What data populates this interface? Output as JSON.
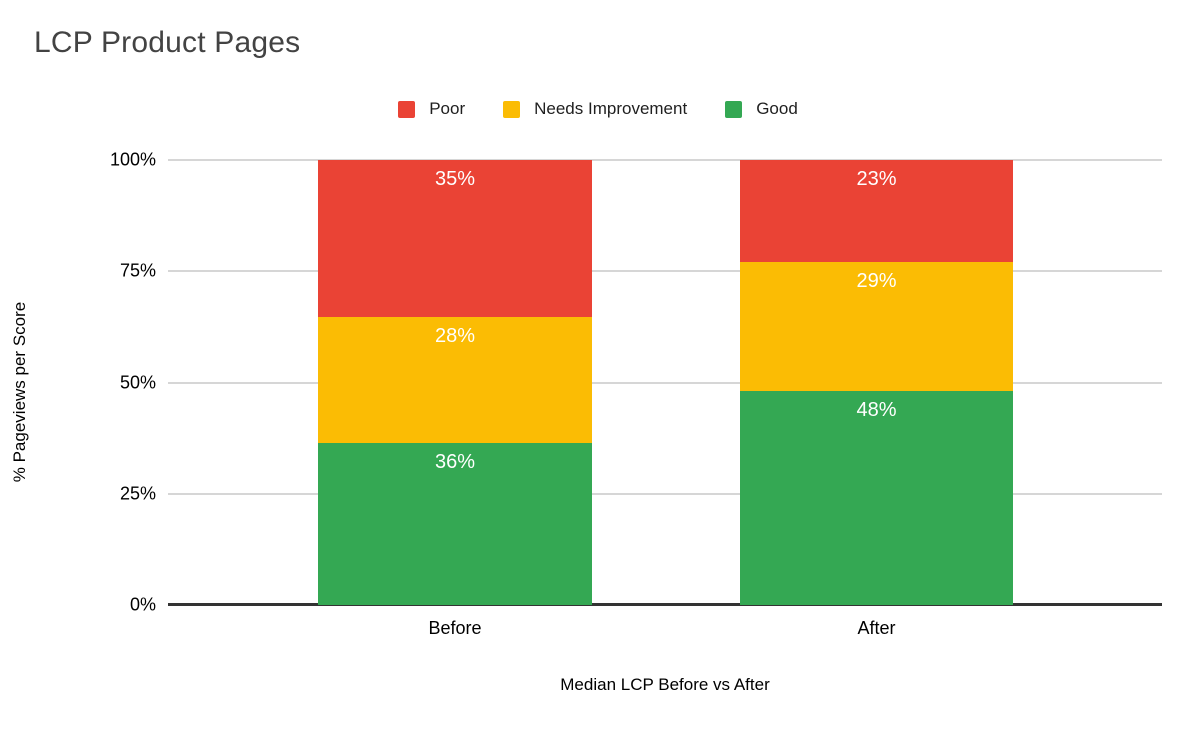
{
  "chart_data": {
    "type": "bar",
    "subtype": "stacked-100-percent",
    "title": "LCP Product Pages",
    "categories": [
      "Before",
      "After"
    ],
    "series": [
      {
        "name": "Poor",
        "color": "#EA4335",
        "values": [
          35,
          23
        ]
      },
      {
        "name": "Needs Improvement",
        "color": "#FBBC04",
        "values": [
          28,
          29
        ]
      },
      {
        "name": "Good",
        "color": "#34A853",
        "values": [
          36,
          48
        ]
      }
    ],
    "stack_order_top_to_bottom": [
      "Poor",
      "Needs Improvement",
      "Good"
    ],
    "value_label_suffix": "%",
    "xlabel": "Median LCP Before vs After",
    "ylabel": "% Pageviews per Score",
    "ylim": [
      0,
      100
    ],
    "yticks": [
      0,
      25,
      50,
      75,
      100
    ],
    "ytick_labels": [
      "0%",
      "25%",
      "50%",
      "75%",
      "100%"
    ],
    "grid": true,
    "legend_position": "top-center"
  },
  "style": {
    "title_color": "#434343",
    "gridline_color": "#d6d6d6",
    "axis_line_color": "#333333",
    "label_text_color": "#000000",
    "value_label_color": "#ffffff",
    "background": "#ffffff"
  }
}
